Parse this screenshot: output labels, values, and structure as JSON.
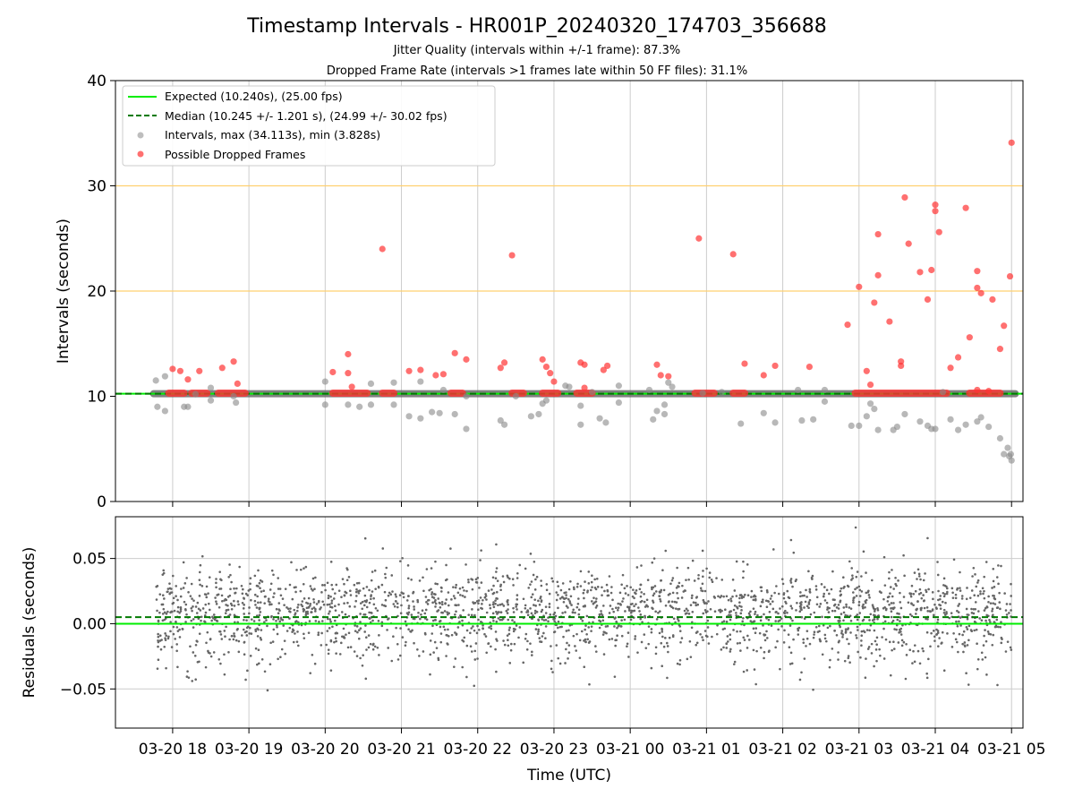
{
  "chart_data": {
    "title": "Timestamp Intervals - HR001P_20240320_174703_356688",
    "subtitle_1": "Jitter Quality (intervals within +/-1 frame): 87.3%",
    "subtitle_2": "Dropped Frame Rate (intervals >1 frames late within 50 FF files): 31.1%",
    "xlabel": "Time (UTC)",
    "x_ticks": [
      "03-20 18",
      "03-20 19",
      "03-20 20",
      "03-20 21",
      "03-20 22",
      "03-20 23",
      "03-21 00",
      "03-21 01",
      "03-21 02",
      "03-21 03",
      "03-21 04",
      "03-21 05"
    ],
    "x_range_hours": [
      17.25,
      29.15
    ],
    "colors": {
      "expected": "#00ee00",
      "median": "#007a00",
      "intervals": "#888888",
      "dropped": "#ff3333",
      "threshold": "#ffd070",
      "residuals": "#666666"
    },
    "panels": [
      {
        "type": "scatter",
        "ylabel": "Intervals (seconds)",
        "ylim": [
          0,
          40
        ],
        "y_ticks": [
          "0",
          "10",
          "20",
          "30",
          "40"
        ],
        "grid": true,
        "legend_position": "top-left",
        "expected_line": 10.24,
        "median_line": 10.245,
        "threshold_lines": [
          20,
          30
        ],
        "legend": [
          "Expected (10.240s), (25.00 fps)",
          "Median (10.245 +/- 1.201 s), (24.99 +/- 30.02 fps)",
          "Intervals, max (34.113s), min (3.828s)",
          "Possible Dropped Frames"
        ],
        "series": [
          {
            "name": "Intervals, max (34.113s), min (3.828s)",
            "points": [
              [
                17.78,
                11.5
              ],
              [
                17.8,
                9.0
              ],
              [
                17.9,
                8.6
              ],
              [
                17.9,
                11.9
              ],
              [
                18.15,
                9.0
              ],
              [
                18.2,
                9.0
              ],
              [
                18.3,
                10.2
              ],
              [
                18.5,
                9.6
              ],
              [
                18.5,
                10.8
              ],
              [
                18.8,
                10.0
              ],
              [
                18.83,
                9.4
              ],
              [
                20.0,
                9.2
              ],
              [
                20.0,
                11.4
              ],
              [
                20.3,
                9.2
              ],
              [
                20.45,
                9.0
              ],
              [
                20.6,
                9.2
              ],
              [
                20.6,
                11.2
              ],
              [
                20.9,
                9.2
              ],
              [
                20.9,
                11.3
              ],
              [
                21.1,
                8.1
              ],
              [
                21.25,
                7.9
              ],
              [
                21.25,
                11.4
              ],
              [
                21.4,
                8.5
              ],
              [
                21.5,
                8.4
              ],
              [
                21.55,
                10.6
              ],
              [
                21.7,
                8.3
              ],
              [
                21.85,
                6.9
              ],
              [
                21.85,
                10.0
              ],
              [
                22.3,
                7.7
              ],
              [
                22.35,
                7.3
              ],
              [
                22.5,
                10.0
              ],
              [
                22.7,
                8.1
              ],
              [
                22.8,
                8.3
              ],
              [
                22.85,
                9.3
              ],
              [
                22.9,
                9.6
              ],
              [
                23.15,
                11.0
              ],
              [
                23.2,
                10.9
              ],
              [
                23.35,
                7.3
              ],
              [
                23.35,
                9.1
              ],
              [
                23.5,
                10.4
              ],
              [
                23.6,
                7.9
              ],
              [
                23.68,
                7.5
              ],
              [
                23.85,
                9.4
              ],
              [
                23.85,
                11.0
              ],
              [
                24.25,
                10.6
              ],
              [
                24.3,
                7.8
              ],
              [
                24.35,
                8.6
              ],
              [
                24.45,
                8.3
              ],
              [
                24.45,
                9.2
              ],
              [
                24.5,
                11.3
              ],
              [
                24.55,
                10.9
              ],
              [
                24.95,
                10.3
              ],
              [
                25.2,
                10.4
              ],
              [
                25.45,
                7.4
              ],
              [
                25.75,
                8.4
              ],
              [
                25.9,
                7.5
              ],
              [
                26.2,
                10.6
              ],
              [
                26.25,
                7.7
              ],
              [
                26.4,
                7.8
              ],
              [
                26.55,
                10.6
              ],
              [
                26.55,
                9.5
              ],
              [
                26.9,
                7.2
              ],
              [
                27.0,
                7.2
              ],
              [
                27.1,
                8.1
              ],
              [
                27.15,
                9.3
              ],
              [
                27.2,
                8.8
              ],
              [
                27.25,
                6.8
              ],
              [
                27.45,
                6.8
              ],
              [
                27.5,
                7.1
              ],
              [
                27.6,
                8.3
              ],
              [
                27.8,
                7.6
              ],
              [
                27.9,
                7.2
              ],
              [
                27.95,
                6.9
              ],
              [
                28.0,
                6.9
              ],
              [
                28.1,
                10.4
              ],
              [
                28.2,
                7.8
              ],
              [
                28.3,
                6.8
              ],
              [
                28.4,
                7.3
              ],
              [
                28.55,
                7.6
              ],
              [
                28.6,
                8.0
              ],
              [
                28.7,
                7.1
              ],
              [
                28.85,
                6.0
              ],
              [
                28.9,
                4.5
              ],
              [
                28.95,
                5.1
              ],
              [
                28.97,
                4.3
              ],
              [
                29.0,
                3.9
              ],
              [
                28.99,
                4.5
              ]
            ]
          },
          {
            "name": "Possible Dropped Frames",
            "points": [
              [
                18.0,
                12.6
              ],
              [
                18.1,
                12.4
              ],
              [
                18.2,
                11.6
              ],
              [
                18.35,
                12.4
              ],
              [
                18.65,
                12.7
              ],
              [
                18.8,
                13.3
              ],
              [
                18.85,
                11.2
              ],
              [
                20.1,
                12.3
              ],
              [
                20.3,
                12.2
              ],
              [
                20.3,
                14.0
              ],
              [
                20.35,
                10.9
              ],
              [
                20.75,
                24.0
              ],
              [
                21.1,
                12.4
              ],
              [
                21.25,
                12.5
              ],
              [
                21.45,
                12.0
              ],
              [
                21.55,
                12.1
              ],
              [
                21.7,
                14.1
              ],
              [
                21.85,
                13.5
              ],
              [
                22.3,
                12.7
              ],
              [
                22.35,
                13.2
              ],
              [
                22.45,
                23.4
              ],
              [
                22.85,
                13.5
              ],
              [
                22.9,
                12.8
              ],
              [
                22.95,
                12.2
              ],
              [
                23.0,
                11.4
              ],
              [
                23.35,
                13.2
              ],
              [
                23.4,
                13.0
              ],
              [
                23.4,
                10.8
              ],
              [
                23.65,
                12.5
              ],
              [
                23.7,
                12.9
              ],
              [
                24.35,
                13.0
              ],
              [
                24.4,
                12.0
              ],
              [
                24.5,
                11.9
              ],
              [
                24.9,
                25.0
              ],
              [
                25.35,
                23.5
              ],
              [
                25.5,
                13.1
              ],
              [
                25.75,
                12.0
              ],
              [
                25.9,
                12.9
              ],
              [
                26.35,
                12.8
              ],
              [
                26.85,
                16.8
              ],
              [
                27.0,
                20.4
              ],
              [
                27.1,
                12.4
              ],
              [
                27.15,
                11.1
              ],
              [
                27.2,
                18.9
              ],
              [
                27.25,
                25.4
              ],
              [
                27.25,
                21.5
              ],
              [
                27.4,
                17.1
              ],
              [
                27.55,
                13.3
              ],
              [
                27.55,
                12.9
              ],
              [
                27.6,
                28.9
              ],
              [
                27.65,
                24.5
              ],
              [
                27.8,
                21.8
              ],
              [
                27.9,
                19.2
              ],
              [
                27.95,
                22.0
              ],
              [
                28.0,
                27.6
              ],
              [
                28.0,
                28.2
              ],
              [
                28.05,
                25.6
              ],
              [
                28.2,
                12.7
              ],
              [
                28.3,
                13.7
              ],
              [
                28.4,
                27.9
              ],
              [
                28.45,
                15.6
              ],
              [
                28.55,
                21.9
              ],
              [
                28.55,
                20.3
              ],
              [
                28.6,
                19.8
              ],
              [
                28.75,
                19.2
              ],
              [
                28.85,
                14.5
              ],
              [
                28.9,
                16.7
              ],
              [
                28.98,
                21.4
              ],
              [
                29.0,
                34.1
              ],
              [
                28.7,
                10.5
              ],
              [
                28.55,
                10.6
              ]
            ]
          }
        ],
        "dense_runs_hours": [
          [
            17.95,
            18.15
          ],
          [
            18.25,
            18.45
          ],
          [
            18.6,
            18.95
          ],
          [
            20.1,
            20.55
          ],
          [
            20.75,
            20.9
          ],
          [
            21.65,
            21.8
          ],
          [
            22.45,
            22.6
          ],
          [
            22.85,
            23.05
          ],
          [
            23.3,
            23.5
          ],
          [
            24.85,
            25.1
          ],
          [
            25.35,
            25.5
          ],
          [
            26.95,
            28.15
          ],
          [
            28.45,
            28.85
          ]
        ]
      },
      {
        "type": "scatter",
        "ylabel": "Residuals (seconds)",
        "ylim": [
          -0.08,
          0.082
        ],
        "y_ticks": [
          "−0.05",
          "0.00",
          "0.05"
        ],
        "grid": true,
        "zero_line": 0.0,
        "median_line": 0.005
      }
    ]
  }
}
